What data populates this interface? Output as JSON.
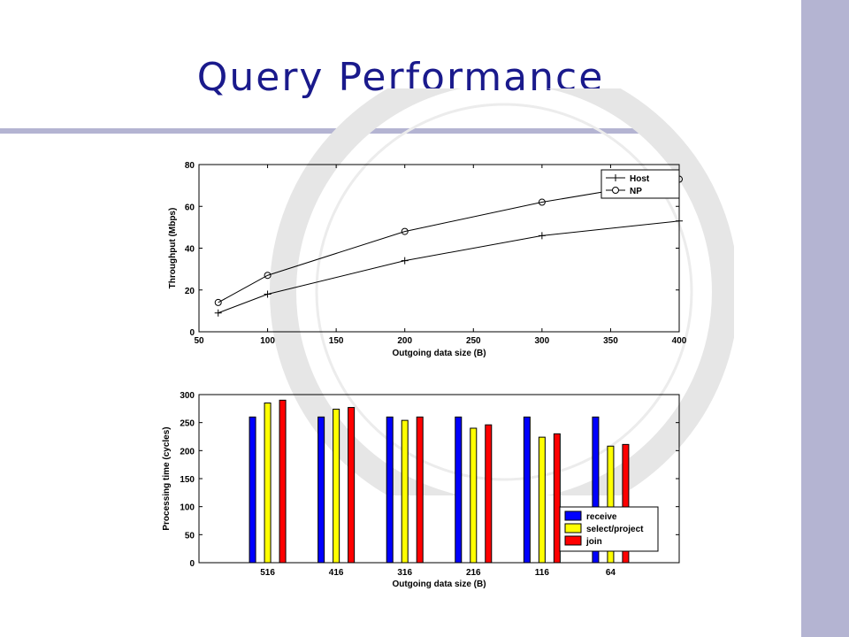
{
  "slide": {
    "title": "Query Performance",
    "accent_color": "#b4b4d2",
    "title_color": "#1a1a8c"
  },
  "chart_data": [
    {
      "type": "line",
      "x": [
        64,
        100,
        200,
        300,
        400
      ],
      "series": [
        {
          "name": "Host",
          "marker": "plus",
          "values": [
            9,
            18,
            34,
            46,
            53
          ]
        },
        {
          "name": "NP",
          "marker": "circle",
          "values": [
            14,
            27,
            48,
            62,
            73
          ]
        }
      ],
      "xlabel": "Outgoing data size (B)",
      "ylabel": "Throughput (Mbps)",
      "xlim": [
        50,
        400
      ],
      "ylim": [
        0,
        80
      ],
      "xticks": [
        50,
        100,
        150,
        200,
        250,
        300,
        350,
        400
      ],
      "yticks": [
        0,
        20,
        40,
        60,
        80
      ],
      "grid": false,
      "legend_position": "top-right"
    },
    {
      "type": "bar",
      "categories": [
        "516",
        "416",
        "316",
        "216",
        "116",
        "64"
      ],
      "series": [
        {
          "name": "receive",
          "color": "#0000ff",
          "values": [
            260,
            260,
            260,
            260,
            260,
            260
          ]
        },
        {
          "name": "select/project",
          "color": "#ffff00",
          "values": [
            285,
            274,
            254,
            240,
            224,
            208
          ]
        },
        {
          "name": "join",
          "color": "#ff0000",
          "values": [
            290,
            277,
            260,
            246,
            230,
            211
          ]
        }
      ],
      "xlabel": "Outgoing data size (B)",
      "ylabel": "Processing time (cycles)",
      "ylim": [
        0,
        300
      ],
      "yticks": [
        0,
        50,
        100,
        150,
        200,
        250,
        300
      ],
      "grid": false,
      "legend_position": "bottom-right"
    }
  ]
}
